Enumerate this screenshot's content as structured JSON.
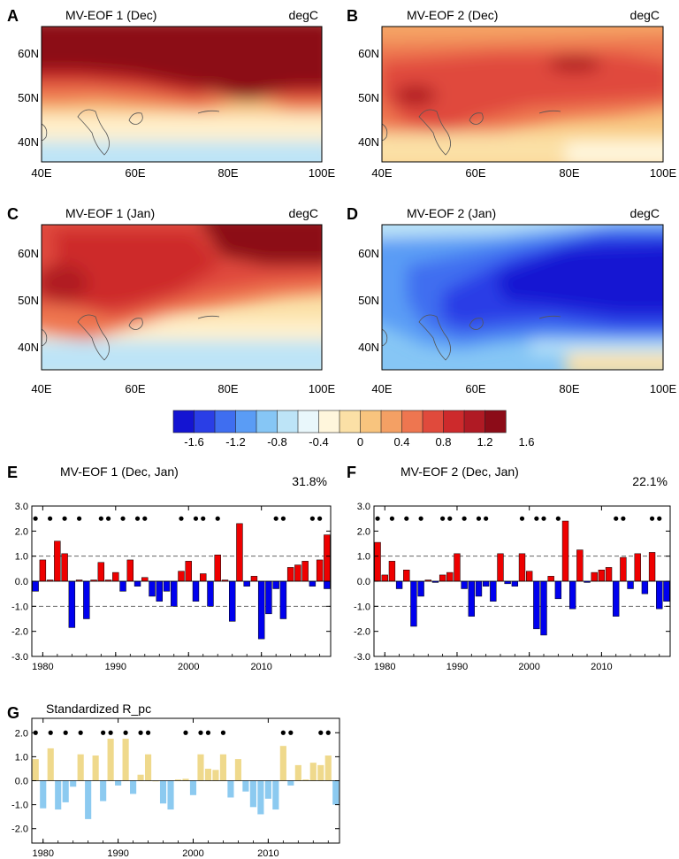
{
  "maps": {
    "lon_ticks": [
      "40E",
      "60E",
      "80E",
      "100E"
    ],
    "lat_ticks": [
      "60N",
      "50N",
      "40N"
    ],
    "panels": [
      {
        "letter": "A",
        "title": "MV-EOF 1 (Dec)",
        "unit": "degC",
        "pattern": "eof1_dec"
      },
      {
        "letter": "B",
        "title": "MV-EOF 2 (Dec)",
        "unit": "degC",
        "pattern": "eof2_dec"
      },
      {
        "letter": "C",
        "title": "MV-EOF 1 (Jan)",
        "unit": "degC",
        "pattern": "eof1_jan"
      },
      {
        "letter": "D",
        "title": "MV-EOF 2 (Jan)",
        "unit": "degC",
        "pattern": "eof2_jan"
      }
    ]
  },
  "colorbar": {
    "labels": [
      "-1.6",
      "-1.2",
      "-0.8",
      "-0.4",
      "0",
      "0.4",
      "0.8",
      "1.2",
      "1.6"
    ],
    "colors": [
      "#1414d2",
      "#2a3ee6",
      "#3f6ef0",
      "#5a9cf5",
      "#86c6f5",
      "#bde4f7",
      "#e9f7fb",
      "#fff6dc",
      "#fbe0a6",
      "#f8c47e",
      "#f4a064",
      "#ee7650",
      "#e04a3c",
      "#cd2a2c",
      "#b01a24",
      "#8c0c18"
    ]
  },
  "chart_data": [
    {
      "type": "bar",
      "letter": "E",
      "title": "MV-EOF 1 (Dec, Jan)",
      "variance": "31.8%",
      "x": [
        1979,
        1980,
        1981,
        1982,
        1983,
        1984,
        1985,
        1986,
        1987,
        1988,
        1989,
        1990,
        1991,
        1992,
        1993,
        1994,
        1995,
        1996,
        1997,
        1998,
        1999,
        2000,
        2001,
        2002,
        2003,
        2004,
        2005,
        2006,
        2007,
        2008,
        2009,
        2010,
        2011,
        2012,
        2013,
        2014,
        2015,
        2016,
        2017,
        2018,
        2019
      ],
      "values": [
        -0.4,
        0.85,
        0.05,
        1.6,
        1.1,
        -1.85,
        0.05,
        -1.5,
        0.05,
        0.75,
        0.05,
        0.35,
        -0.4,
        0.85,
        -0.2,
        0.15,
        -0.6,
        -0.8,
        -0.4,
        -1.0,
        0.4,
        0.8,
        -0.8,
        0.3,
        -1.0,
        1.05,
        0.05,
        -1.6,
        2.3,
        -0.2,
        0.2,
        -2.3,
        -1.3,
        -0.3,
        -1.5,
        0.55,
        0.65,
        0.8,
        -0.2,
        0.85,
        -0.3
      ],
      "extra_bar": {
        "x": 2019,
        "value": 1.85
      },
      "dot_years": [
        1979,
        1981,
        1983,
        1985,
        1988,
        1989,
        1991,
        1993,
        1994,
        1999,
        2001,
        2002,
        2004,
        2012,
        2013,
        2017,
        2018
      ],
      "ylim": [
        -3,
        3
      ],
      "yticks": [
        "3.0",
        "2.0",
        "1.0",
        "0.0",
        "-1.0",
        "-2.0",
        "-3.0"
      ],
      "xticks": [
        "1980",
        "1990",
        "2000",
        "2010"
      ],
      "pos_color": "#ee0000",
      "neg_color": "#0000ee"
    },
    {
      "type": "bar",
      "letter": "F",
      "title": "MV-EOF 2 (Dec, Jan)",
      "variance": "22.1%",
      "x": [
        1979,
        1980,
        1981,
        1982,
        1983,
        1984,
        1985,
        1986,
        1987,
        1988,
        1989,
        1990,
        1991,
        1992,
        1993,
        1994,
        1995,
        1996,
        1997,
        1998,
        1999,
        2000,
        2001,
        2002,
        2003,
        2004,
        2005,
        2006,
        2007,
        2008,
        2009,
        2010,
        2011,
        2012,
        2013,
        2014,
        2015,
        2016,
        2017,
        2018,
        2019
      ],
      "values": [
        1.55,
        0.25,
        0.8,
        -0.3,
        0.45,
        -1.8,
        -0.6,
        0.05,
        -0.05,
        0.25,
        0.35,
        1.1,
        -0.3,
        -1.4,
        -0.6,
        -0.2,
        -0.8,
        1.1,
        -0.1,
        -0.2,
        1.1,
        0.4,
        -1.9,
        -2.15,
        0.2,
        -0.7,
        2.4,
        -1.1,
        1.25,
        -0.05,
        0.35,
        0.45,
        0.55,
        -1.4,
        0.95,
        -0.3,
        1.1,
        -0.5,
        1.15,
        -1.1,
        -0.8
      ],
      "dot_years": [
        1979,
        1981,
        1983,
        1985,
        1988,
        1989,
        1991,
        1993,
        1994,
        1999,
        2001,
        2002,
        2004,
        2012,
        2013,
        2017,
        2018
      ],
      "ylim": [
        -3,
        3
      ],
      "yticks": [
        "3.0",
        "2.0",
        "1.0",
        "0.0",
        "-1.0",
        "-2.0",
        "-3.0"
      ],
      "xticks": [
        "1980",
        "1990",
        "2000",
        "2010"
      ],
      "pos_color": "#ee0000",
      "neg_color": "#0000ee"
    },
    {
      "type": "bar",
      "letter": "G",
      "title": "Standardized R_pc",
      "x": [
        1979,
        1980,
        1981,
        1982,
        1983,
        1984,
        1985,
        1986,
        1987,
        1988,
        1989,
        1990,
        1991,
        1992,
        1993,
        1994,
        1995,
        1996,
        1997,
        1998,
        1999,
        2000,
        2001,
        2002,
        2003,
        2004,
        2005,
        2006,
        2007,
        2008,
        2009,
        2010,
        2011,
        2012,
        2013,
        2014,
        2015,
        2016,
        2017,
        2018,
        2019
      ],
      "values": [
        0.9,
        -1.15,
        1.35,
        -1.2,
        -0.9,
        -0.25,
        1.1,
        -1.6,
        1.05,
        -0.85,
        1.75,
        -0.2,
        1.75,
        -0.55,
        0.25,
        1.1,
        0.0,
        -0.95,
        -1.2,
        0.05,
        0.08,
        -0.6,
        1.1,
        0.5,
        0.45,
        1.1,
        -0.7,
        0.9,
        -0.45,
        -1.1,
        -1.4,
        -0.75,
        -1.2,
        1.45,
        -0.2,
        0.65,
        0.05,
        0.75,
        0.65,
        1.05,
        -1.0
      ],
      "dot_years": [
        1979,
        1981,
        1983,
        1985,
        1988,
        1989,
        1991,
        1993,
        1994,
        1999,
        2001,
        2002,
        2004,
        2012,
        2013,
        2017,
        2018
      ],
      "ylim": [
        -2.6,
        2.6
      ],
      "yticks": [
        "2.0",
        "1.0",
        "0.0",
        "-1.0",
        "-2.0"
      ],
      "xticks": [
        "1980",
        "1990",
        "2000",
        "2010"
      ],
      "pos_color": "#efd98c",
      "neg_color": "#8ccaf0"
    }
  ]
}
